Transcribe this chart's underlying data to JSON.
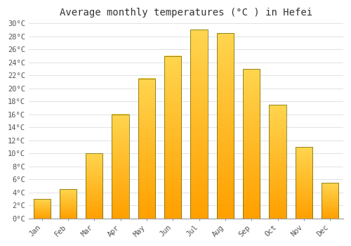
{
  "title": "Average monthly temperatures (°C ) in Hefei",
  "months": [
    "Jan",
    "Feb",
    "Mar",
    "Apr",
    "May",
    "Jun",
    "Jul",
    "Aug",
    "Sep",
    "Oct",
    "Nov",
    "Dec"
  ],
  "temperatures": [
    3,
    4.5,
    10,
    16,
    21.5,
    25,
    29,
    28.5,
    23,
    17.5,
    11,
    5.5
  ],
  "bar_color_bottom": "#FFA000",
  "bar_color_top": "#FFD54F",
  "bar_edge_color": "#888800",
  "ylim": [
    0,
    30
  ],
  "yticks": [
    0,
    2,
    4,
    6,
    8,
    10,
    12,
    14,
    16,
    18,
    20,
    22,
    24,
    26,
    28,
    30
  ],
  "background_color": "#ffffff",
  "grid_color": "#dddddd",
  "title_fontsize": 10,
  "tick_fontsize": 7.5
}
